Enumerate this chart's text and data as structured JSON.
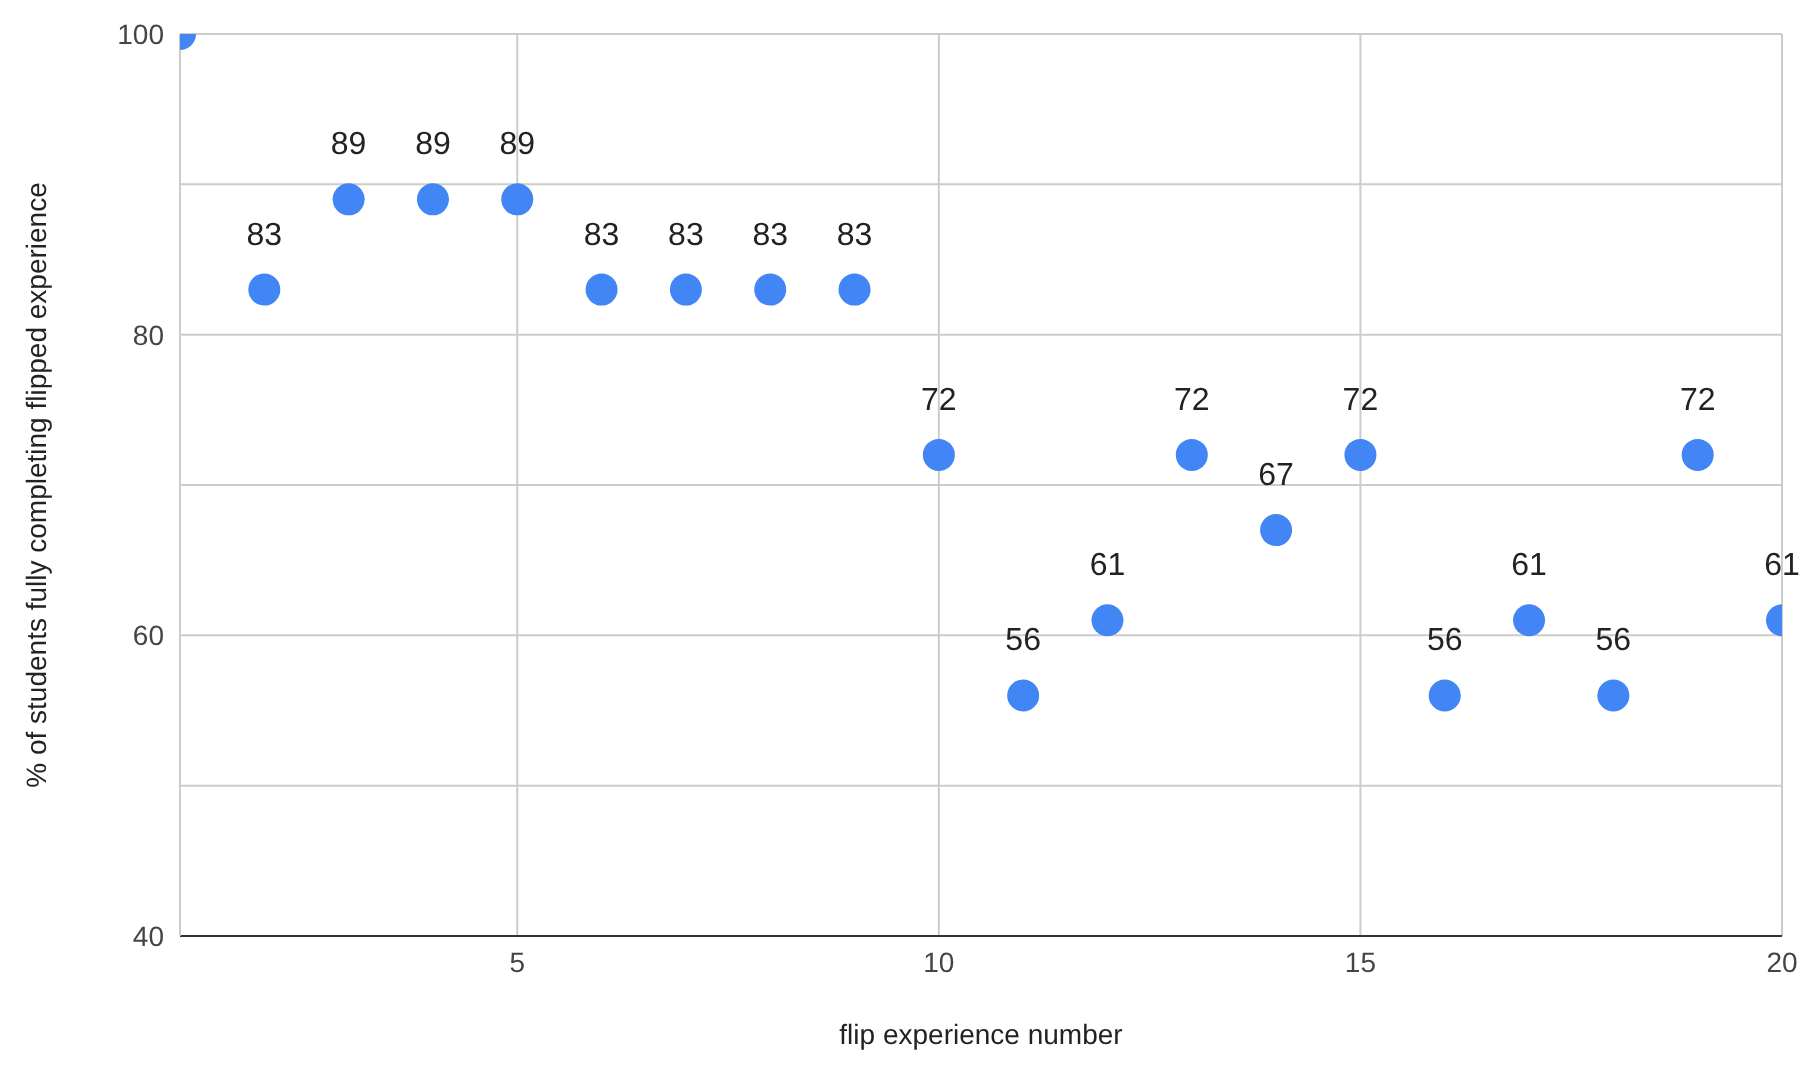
{
  "chart_data": {
    "type": "scatter",
    "xlabel": "flip experience number",
    "ylabel": "% of students fully completing flipped experience",
    "x": [
      1,
      2,
      3,
      4,
      5,
      6,
      7,
      8,
      9,
      10,
      11,
      12,
      13,
      14,
      15,
      16,
      17,
      18,
      19,
      20
    ],
    "series": [
      {
        "color": "#4285f4",
        "values": [
          100,
          83,
          89,
          89,
          89,
          83,
          83,
          83,
          83,
          72,
          56,
          61,
          72,
          67,
          72,
          56,
          61,
          56,
          72,
          61
        ],
        "value_labels": [
          null,
          "83",
          "89",
          "89",
          "89",
          "83",
          "83",
          "83",
          "83",
          "72",
          "56",
          "61",
          "72",
          "67",
          "72",
          "56",
          "61",
          "56",
          "72",
          "61"
        ]
      }
    ],
    "xlim": [
      1,
      20
    ],
    "xticks": [
      5,
      10,
      15,
      20
    ],
    "ylim": [
      40,
      100
    ],
    "yticks": [
      40,
      {
        "value": 50,
        "label": null
      },
      60,
      {
        "value": 70,
        "label": null
      },
      80,
      {
        "value": 90,
        "label": null
      },
      100
    ],
    "grid": true,
    "marker": "circle"
  }
}
